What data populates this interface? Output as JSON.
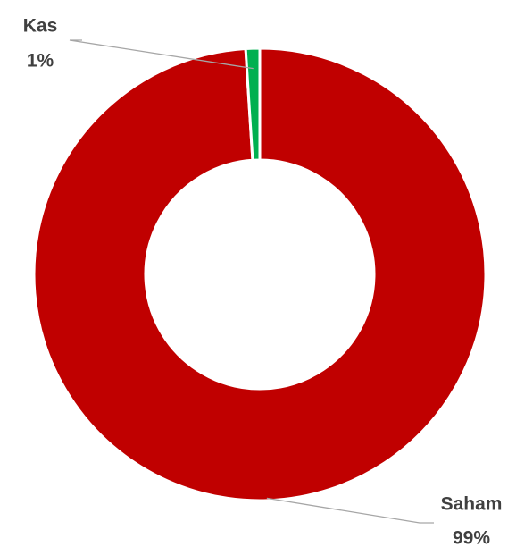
{
  "chart_data": {
    "type": "donut",
    "categories": [
      "Saham",
      "Kas"
    ],
    "values": [
      99,
      1
    ],
    "value_labels": [
      "99%",
      "1%"
    ],
    "colors": [
      "#c00000",
      "#00b050"
    ]
  }
}
